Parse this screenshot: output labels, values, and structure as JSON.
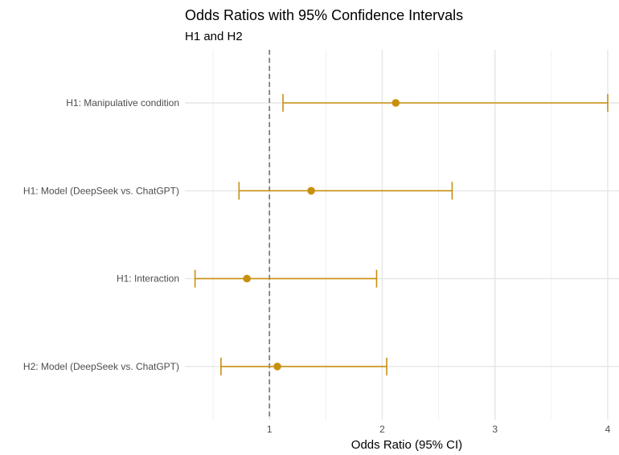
{
  "chart_data": {
    "type": "forest",
    "title": "Odds Ratios with 95% Confidence Intervals",
    "subtitle": "H1 and H2",
    "xlabel": "Odds Ratio (95% CI)",
    "ylabel": "",
    "xlim": [
      0.25,
      4.1
    ],
    "x_ticks": [
      1,
      2,
      3,
      4
    ],
    "x_minor_ticks": [
      0.5,
      1.5,
      2.5,
      3.5
    ],
    "reference_line": 1,
    "grid": true,
    "legend": "none",
    "point_color": "#C8900F",
    "reference_line_color": "#7f7f7f",
    "rows": [
      {
        "label": "H1: Manipulative condition",
        "estimate": 2.12,
        "lower": 1.12,
        "upper": 4.0
      },
      {
        "label": "H1: Model (DeepSeek vs. ChatGPT)",
        "estimate": 1.37,
        "lower": 0.73,
        "upper": 2.62
      },
      {
        "label": "H1: Interaction",
        "estimate": 0.8,
        "lower": 0.34,
        "upper": 1.95
      },
      {
        "label": "H2: Model (DeepSeek vs. ChatGPT)",
        "estimate": 1.07,
        "lower": 0.57,
        "upper": 2.04
      }
    ]
  }
}
